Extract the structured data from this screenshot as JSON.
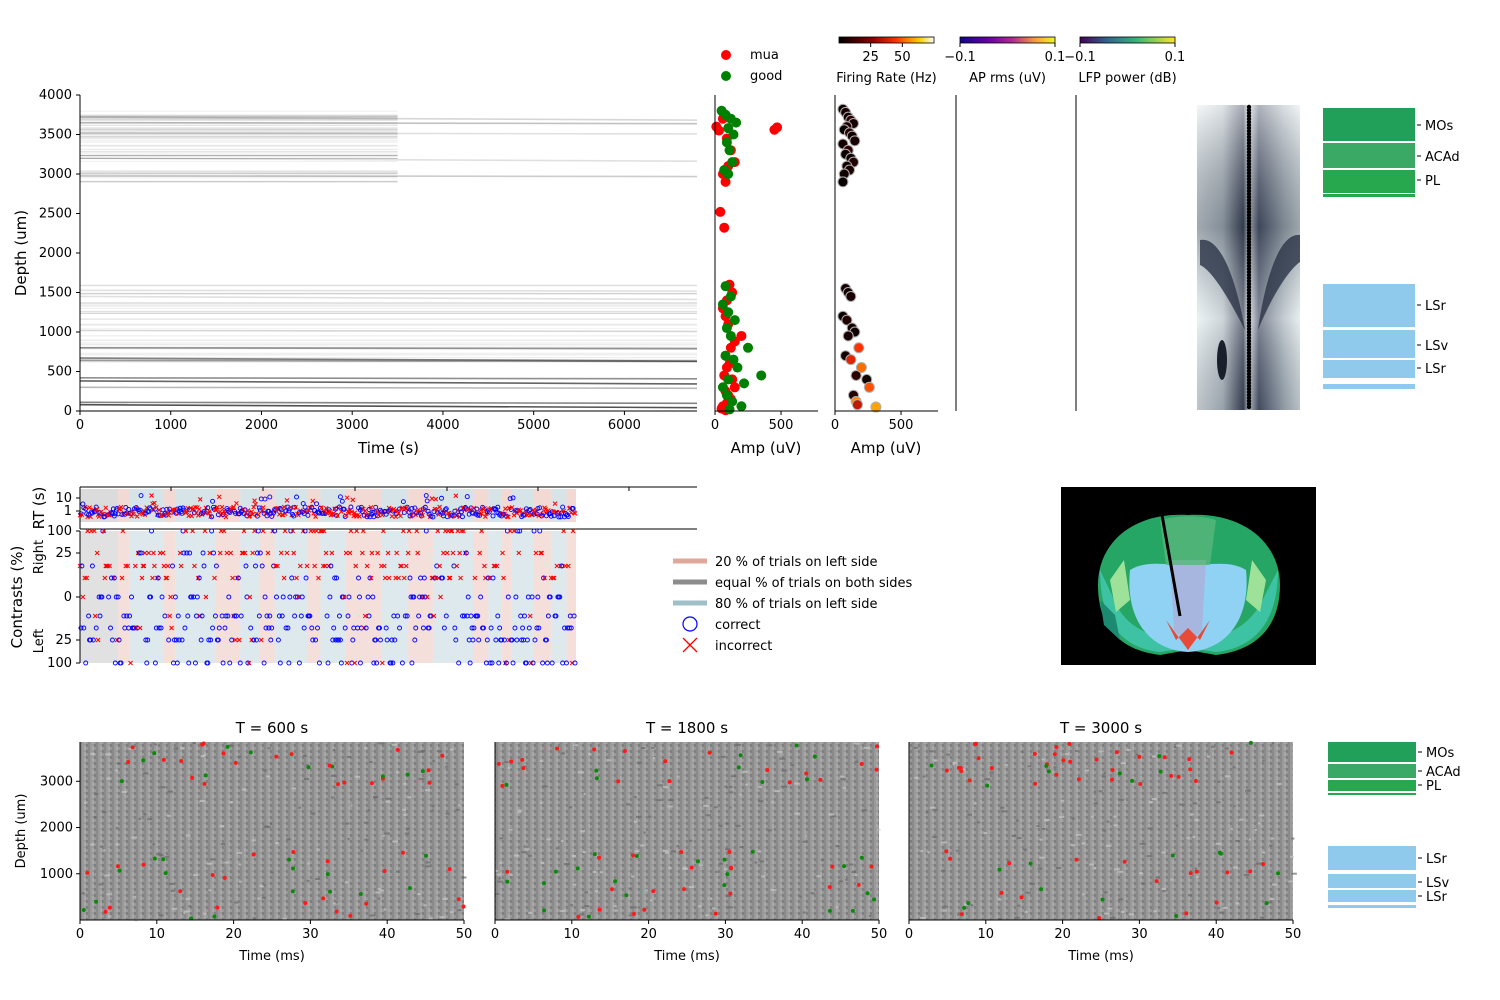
{
  "chart_data": [
    {
      "type": "heatmap",
      "id": "raster",
      "xlabel": "Time (s)",
      "ylabel": "Depth (um)",
      "xlim": [
        0,
        6800
      ],
      "ylim": [
        0,
        4000
      ],
      "xticks": [
        "0",
        "1000",
        "2000",
        "3000",
        "4000",
        "5000",
        "6000"
      ],
      "yticks": [
        "0",
        "500",
        "1000",
        "1500",
        "2000",
        "2500",
        "3000",
        "3500",
        "4000"
      ],
      "bands": [
        {
          "depth": 80,
          "strength": 0.85
        },
        {
          "depth": 110,
          "strength": 0.6
        },
        {
          "depth": 300,
          "strength": 0.35
        },
        {
          "depth": 380,
          "strength": 0.75
        },
        {
          "depth": 420,
          "strength": 0.55
        },
        {
          "depth": 640,
          "strength": 0.5
        },
        {
          "depth": 670,
          "strength": 0.6
        },
        {
          "depth": 800,
          "strength": 0.45
        },
        {
          "depth": 1020,
          "strength": 0.2
        },
        {
          "depth": 1450,
          "strength": 0.15
        },
        {
          "depth": 1530,
          "strength": 0.12
        },
        {
          "depth": 2980,
          "strength": 0.25
        },
        {
          "depth": 3200,
          "strength": 0.15
        },
        {
          "depth": 3520,
          "strength": 0.15
        },
        {
          "depth": 3650,
          "strength": 0.3
        },
        {
          "depth": 3720,
          "strength": 0.2
        }
      ]
    },
    {
      "type": "scatter",
      "id": "amp_scatter",
      "xlabel": "Amp (uV)",
      "xlim": [
        0,
        780
      ],
      "xticks": [
        "0",
        "500"
      ],
      "series": [
        {
          "name": "mua",
          "color": "#ff0000",
          "x": [
            10,
            30,
            60,
            90,
            120,
            150,
            450,
            470,
            60,
            80,
            100,
            40,
            70,
            110,
            130,
            90,
            60,
            80,
            100,
            200,
            150,
            120,
            80,
            110,
            90,
            70,
            130,
            150,
            80,
            100,
            120,
            90,
            60,
            50,
            80
          ],
          "y": [
            3600,
            3550,
            3700,
            3450,
            3300,
            3150,
            3560,
            3590,
            3000,
            2900,
            3100,
            2520,
            2320,
            1600,
            1500,
            1400,
            1300,
            1200,
            1100,
            950,
            880,
            800,
            700,
            600,
            550,
            450,
            400,
            300,
            250,
            200,
            150,
            100,
            60,
            30,
            10
          ]
        },
        {
          "name": "good",
          "color": "#008000",
          "x": [
            50,
            80,
            120,
            160,
            100,
            140,
            90,
            110,
            130,
            70,
            100,
            80,
            120,
            60,
            100,
            150,
            90,
            120,
            250,
            80,
            140,
            170,
            350,
            100,
            220,
            60,
            90,
            130,
            200,
            110
          ],
          "y": [
            3800,
            3750,
            3700,
            3650,
            3580,
            3500,
            3400,
            3300,
            3150,
            3050,
            3000,
            1580,
            1450,
            1350,
            1250,
            1150,
            1050,
            950,
            800,
            700,
            650,
            550,
            450,
            400,
            350,
            300,
            200,
            120,
            60,
            20
          ]
        }
      ],
      "legend": "top"
    },
    {
      "type": "scatter",
      "id": "fr_scatter",
      "xlabel": "Amp (uV)",
      "xlim": [
        0,
        780
      ],
      "xticks": [
        "0",
        "500"
      ],
      "colorbar": {
        "label": "Firing Rate (Hz)",
        "ticks": [
          "25",
          "50"
        ],
        "values": [
          25,
          50
        ],
        "range": [
          0,
          75
        ]
      },
      "points": {
        "x": [
          60,
          80,
          100,
          120,
          140,
          90,
          70,
          110,
          130,
          150,
          60,
          100,
          80,
          120,
          140,
          90,
          110,
          70,
          60,
          80,
          100,
          120,
          60,
          90,
          130,
          150,
          100,
          180,
          80,
          120,
          200,
          160,
          240,
          260,
          140,
          160,
          170,
          310
        ],
        "y": [
          3820,
          3780,
          3720,
          3680,
          3640,
          3600,
          3560,
          3520,
          3480,
          3420,
          3380,
          3300,
          3250,
          3200,
          3150,
          3100,
          3050,
          3000,
          2900,
          1550,
          1500,
          1450,
          1200,
          1150,
          1050,
          1000,
          950,
          800,
          700,
          650,
          550,
          450,
          400,
          300,
          200,
          120,
          80,
          50
        ],
        "fr": [
          2,
          5,
          3,
          8,
          4,
          6,
          2,
          7,
          3,
          5,
          4,
          9,
          2,
          3,
          6,
          4,
          5,
          3,
          2,
          4,
          3,
          5,
          2,
          6,
          4,
          3,
          5,
          45,
          3,
          40,
          55,
          8,
          4,
          50,
          6,
          60,
          35,
          65
        ]
      }
    },
    {
      "type": "heatmap",
      "id": "ap_rms",
      "colorbar": {
        "label": "AP rms (uV)",
        "ticks": [
          "−0.1",
          "0.1"
        ],
        "values": [
          -0.1,
          0.1
        ]
      }
    },
    {
      "type": "heatmap",
      "id": "lfp_power",
      "colorbar": {
        "label": "LFP power (dB)",
        "ticks": [
          "−0.1",
          "0.1"
        ],
        "values": [
          -0.1,
          0.1
        ]
      }
    },
    {
      "type": "scatter",
      "id": "rt",
      "ylabel": "RT (s)",
      "yticks": [
        "10",
        "1"
      ]
    },
    {
      "type": "scatter",
      "id": "contrasts",
      "ylabel": "Contrasts (%)",
      "side_labels": [
        "Right",
        "Left"
      ],
      "yticks": [
        "100",
        "25",
        "0",
        "25",
        "100"
      ],
      "blocks": [
        {
          "start": 0,
          "end": 40,
          "type": "equal"
        },
        {
          "start": 40,
          "end": 52,
          "type": "left20"
        },
        {
          "start": 52,
          "end": 88,
          "type": "left80"
        },
        {
          "start": 88,
          "end": 100,
          "type": "left20"
        },
        {
          "start": 100,
          "end": 142,
          "type": "left80"
        },
        {
          "start": 142,
          "end": 168,
          "type": "left20"
        },
        {
          "start": 168,
          "end": 188,
          "type": "left80"
        },
        {
          "start": 188,
          "end": 204,
          "type": "left20"
        },
        {
          "start": 204,
          "end": 238,
          "type": "left80"
        },
        {
          "start": 238,
          "end": 252,
          "type": "left20"
        },
        {
          "start": 252,
          "end": 278,
          "type": "left80"
        },
        {
          "start": 278,
          "end": 316,
          "type": "left20"
        },
        {
          "start": 316,
          "end": 344,
          "type": "left80"
        },
        {
          "start": 344,
          "end": 370,
          "type": "left20"
        },
        {
          "start": 370,
          "end": 412,
          "type": "left80"
        },
        {
          "start": 412,
          "end": 428,
          "type": "left20"
        },
        {
          "start": 428,
          "end": 442,
          "type": "left80"
        },
        {
          "start": 442,
          "end": 452,
          "type": "left20"
        },
        {
          "start": 452,
          "end": 476,
          "type": "left80"
        },
        {
          "start": 476,
          "end": 494,
          "type": "left20"
        },
        {
          "start": 494,
          "end": 510,
          "type": "left80"
        },
        {
          "start": 510,
          "end": 520,
          "type": "left20"
        }
      ],
      "n_trials": 520
    },
    {
      "type": "legend",
      "id": "block_legend",
      "entries": [
        {
          "label": "20 % of trials on left side",
          "color": "#e0a89a",
          "marker": "line"
        },
        {
          "label": "equal % of trials on both sides",
          "color": "#8c8c8c",
          "marker": "line"
        },
        {
          "label": "80 % of trials on left side",
          "color": "#9fbfc9",
          "marker": "line"
        },
        {
          "label": "correct",
          "color": "#0000ff",
          "marker": "circle"
        },
        {
          "label": "incorrect",
          "color": "#ff0000",
          "marker": "x"
        }
      ]
    },
    {
      "type": "table",
      "id": "regions_top",
      "labels": [
        "MOs",
        "ACAd",
        "PL",
        "LSr",
        "LSv",
        "LSr"
      ]
    },
    {
      "type": "heatmap",
      "id": "snapshots",
      "panels": [
        {
          "title": "T = 600 s"
        },
        {
          "title": "T = 1800 s"
        },
        {
          "title": "T = 3000 s"
        }
      ],
      "xlabel": "Time (ms)",
      "ylabel": "Depth (um)",
      "xlim": [
        0,
        50
      ],
      "ylim": [
        0,
        3850
      ],
      "xticks": [
        "0",
        "10",
        "20",
        "30",
        "40",
        "50"
      ],
      "yticks": [
        "1000",
        "2000",
        "3000"
      ]
    },
    {
      "type": "table",
      "id": "regions_bottom",
      "labels": [
        "MOs",
        "ACAd",
        "PL",
        "LSr",
        "LSv",
        "LSr"
      ]
    }
  ]
}
